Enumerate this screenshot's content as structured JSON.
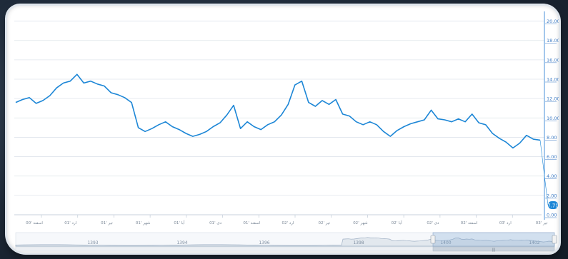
{
  "chart_data": {
    "type": "line",
    "title": "",
    "xlabel": "",
    "ylabel": "",
    "ylim": [
      0,
      21
    ],
    "y_axis_position": "right",
    "grid": true,
    "line_color": "#1c86d6",
    "y_ticks": [
      "0.00",
      "2.00",
      "4.00",
      "6.00",
      "8.00",
      "10.00",
      "12.00",
      "14.00",
      "16.00",
      "18.00",
      "20.00"
    ],
    "x_ticks": [
      "اسفند '00",
      "ارد '01",
      "تیر '01",
      "شهر '01",
      "آبا '01",
      "دی '01",
      "اسفند '01",
      "ارد '02",
      "تیر '02",
      "شهر '02",
      "آبا '02",
      "دی '02",
      "اسفند '02",
      "ارد '03",
      "تیر '03"
    ],
    "last_value_label": "7.71",
    "series": [
      {
        "values": [
          11.6,
          11.9,
          12.1,
          11.5,
          11.8,
          12.3,
          13.1,
          13.6,
          13.8,
          14.5,
          13.6,
          13.8,
          13.5,
          13.3,
          12.6,
          12.4,
          12.1,
          11.6,
          9.0,
          8.6,
          8.9,
          9.3,
          9.6,
          9.1,
          8.8,
          8.4,
          8.1,
          8.3,
          8.6,
          9.1,
          9.5,
          10.3,
          11.3,
          8.9,
          9.6,
          9.1,
          8.8,
          9.3,
          9.6,
          10.3,
          11.4,
          13.4,
          13.8,
          11.6,
          11.2,
          11.8,
          11.4,
          11.9,
          10.4,
          10.2,
          9.6,
          9.3,
          9.6,
          9.3,
          8.6,
          8.1,
          8.7,
          9.1,
          9.4,
          9.6,
          9.8,
          10.8,
          9.9,
          9.8,
          9.6,
          9.9,
          9.6,
          10.4,
          9.5,
          9.3,
          8.4,
          7.9,
          7.5,
          6.9,
          7.4,
          8.2,
          7.8,
          7.71
        ]
      }
    ],
    "navigator": {
      "labels": [
        "1393",
        "1394",
        "1396",
        "1398",
        "1400",
        "1402"
      ]
    }
  }
}
